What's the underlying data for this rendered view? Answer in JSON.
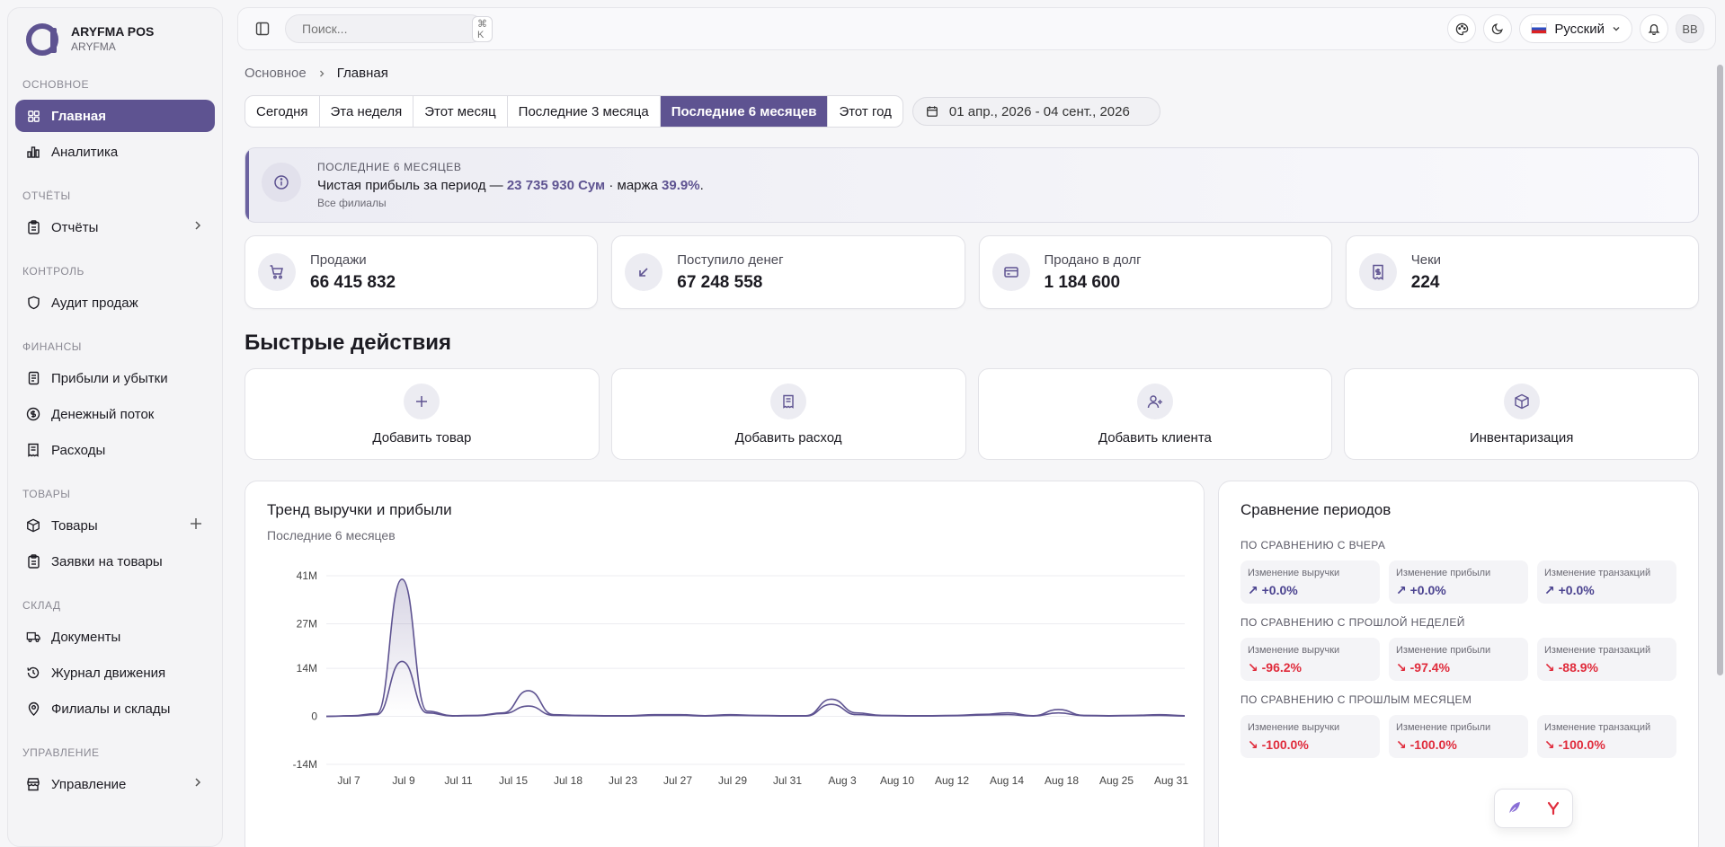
{
  "brand": {
    "name": "ARYFMA POS",
    "sub": "ARYFMA"
  },
  "sidebar": {
    "groups": [
      {
        "title": "ОСНОВНОЕ",
        "items": [
          {
            "label": "Главная",
            "icon": "grid-icon",
            "active": true
          },
          {
            "label": "Аналитика",
            "icon": "bar-chart-icon"
          }
        ]
      },
      {
        "title": "ОТЧЁТЫ",
        "items": [
          {
            "label": "Отчёты",
            "icon": "clipboard-icon",
            "chevron": true
          }
        ]
      },
      {
        "title": "КОНТРОЛЬ",
        "items": [
          {
            "label": "Аудит продаж",
            "icon": "shield-icon"
          }
        ]
      },
      {
        "title": "ФИНАНСЫ",
        "items": [
          {
            "label": "Прибыли и убытки",
            "icon": "scroll-icon"
          },
          {
            "label": "Денежный поток",
            "icon": "dollar-circle-icon"
          },
          {
            "label": "Расходы",
            "icon": "receipt-icon"
          }
        ]
      },
      {
        "title": "ТОВАРЫ",
        "items": [
          {
            "label": "Товары",
            "icon": "box-icon",
            "plus": true
          },
          {
            "label": "Заявки на товары",
            "icon": "clipboard-list-icon"
          }
        ]
      },
      {
        "title": "СКЛАД",
        "items": [
          {
            "label": "Документы",
            "icon": "truck-icon"
          },
          {
            "label": "Журнал движения",
            "icon": "history-icon"
          },
          {
            "label": "Филиалы и склады",
            "icon": "map-pin-icon"
          }
        ]
      },
      {
        "title": "УПРАВЛЕНИЕ",
        "items": [
          {
            "label": "Управление",
            "icon": "store-icon",
            "chevron": true
          }
        ]
      }
    ]
  },
  "topbar": {
    "search_placeholder": "Поиск...",
    "search_kbd": "⌘ K",
    "language": "Русский",
    "avatar": "BB"
  },
  "breadcrumb": {
    "root": "Основное",
    "current": "Главная"
  },
  "periods": [
    "Сегодня",
    "Эта неделя",
    "Этот месяц",
    "Последние 3 месяца",
    "Последние 6 месяцев",
    "Этот год"
  ],
  "active_period": 4,
  "date_range": "01 апр., 2026 - 04 сент., 2026",
  "banner": {
    "title": "ПОСЛЕДНИЕ 6 МЕСЯЦЕВ",
    "text_prefix": "Чистая прибыль за период — ",
    "profit": "23 735 930 Сум",
    "text_mid": " · маржа ",
    "margin": "39.9%",
    "text_suffix": ".",
    "sub": "Все филиалы"
  },
  "stats": [
    {
      "label": "Продажи",
      "value": "66 415 832",
      "icon": "cart-icon"
    },
    {
      "label": "Поступило денег",
      "value": "67 248 558",
      "icon": "arrow-down-left-icon"
    },
    {
      "label": "Продано в долг",
      "value": "1 184 600",
      "icon": "credit-card-icon"
    },
    {
      "label": "Чеки",
      "value": "224",
      "icon": "receipt-icon"
    }
  ],
  "quick_actions_title": "Быстрые действия",
  "quick_actions": [
    {
      "label": "Добавить товар",
      "icon": "plus-icon"
    },
    {
      "label": "Добавить расход",
      "icon": "receipt-icon"
    },
    {
      "label": "Добавить клиента",
      "icon": "user-plus-icon"
    },
    {
      "label": "Инвентаризация",
      "icon": "box-icon"
    }
  ],
  "trend": {
    "title": "Тренд выручки и прибыли",
    "subtitle": "Последние 6 месяцев"
  },
  "chart_data": {
    "type": "area",
    "title": "Тренд выручки и прибыли",
    "subtitle": "Последние 6 месяцев",
    "xlabel": "",
    "ylabel": "",
    "y_ticks": [
      "41M",
      "27M",
      "14M",
      "0",
      "-14M"
    ],
    "y_tick_values": [
      41,
      27,
      14,
      0,
      -14
    ],
    "ylim": [
      -14,
      41
    ],
    "x_tick_labels": [
      "Jul 7",
      "Jul 9",
      "Jul 11",
      "Jul 15",
      "Jul 18",
      "Jul 23",
      "Jul 27",
      "Jul 29",
      "Jul 31",
      "Aug 3",
      "Aug 10",
      "Aug 12",
      "Aug 14",
      "Aug 18",
      "Aug 25",
      "Aug 31"
    ],
    "grid": true,
    "series": [
      {
        "values": [
          0,
          0.2,
          0.8,
          40,
          1.5,
          0.2,
          0.3,
          1,
          7.5,
          0.5,
          0.3,
          0.2,
          0.2,
          0.5,
          0.5,
          0.2,
          0.5,
          0.3,
          0.2,
          0.2,
          5,
          1,
          0.3,
          0.2,
          0.2,
          0.3,
          0.6,
          1,
          0.2,
          2,
          0.3,
          0.2,
          0.3,
          0.5,
          0.2
        ]
      },
      {
        "values": [
          0,
          0.1,
          0.5,
          16,
          1,
          0.1,
          0.2,
          0.8,
          3,
          0.3,
          0.2,
          0.1,
          0.1,
          0.3,
          0.3,
          0.1,
          0.3,
          0.2,
          0.1,
          0.1,
          3.5,
          0.5,
          0.2,
          0.1,
          0.1,
          0.2,
          0.4,
          0.5,
          0.1,
          1,
          0.2,
          0.1,
          0.2,
          0.3,
          0.1
        ]
      }
    ]
  },
  "compare": {
    "title": "Сравнение периодов",
    "groups": [
      {
        "title": "ПО СРАВНЕНИЮ С ВЧЕРА",
        "cells": [
          {
            "label": "Изменение выручки",
            "value": "↗ +0.0%",
            "dir": "up"
          },
          {
            "label": "Изменение прибыли",
            "value": "↗ +0.0%",
            "dir": "up"
          },
          {
            "label": "Изменение транзакций",
            "value": "↗ +0.0%",
            "dir": "up"
          }
        ]
      },
      {
        "title": "ПО СРАВНЕНИЮ С ПРОШЛОЙ НЕДЕЛЕЙ",
        "cells": [
          {
            "label": "Изменение выручки",
            "value": "↘ -96.2%",
            "dir": "down"
          },
          {
            "label": "Изменение прибыли",
            "value": "↘ -97.4%",
            "dir": "down"
          },
          {
            "label": "Изменение транзакций",
            "value": "↘ -88.9%",
            "dir": "down"
          }
        ]
      },
      {
        "title": "ПО СРАВНЕНИЮ С ПРОШЛЫМ МЕСЯЦЕМ",
        "cells": [
          {
            "label": "Изменение выручки",
            "value": "↘ -100.0%",
            "dir": "down"
          },
          {
            "label": "Изменение прибыли",
            "value": "↘ -100.0%",
            "dir": "down"
          },
          {
            "label": "Изменение транзакций",
            "value": "↘ -100.0%",
            "dir": "down"
          }
        ]
      }
    ]
  },
  "colors": {
    "accent": "#5e5391",
    "down": "#e02c3c"
  }
}
